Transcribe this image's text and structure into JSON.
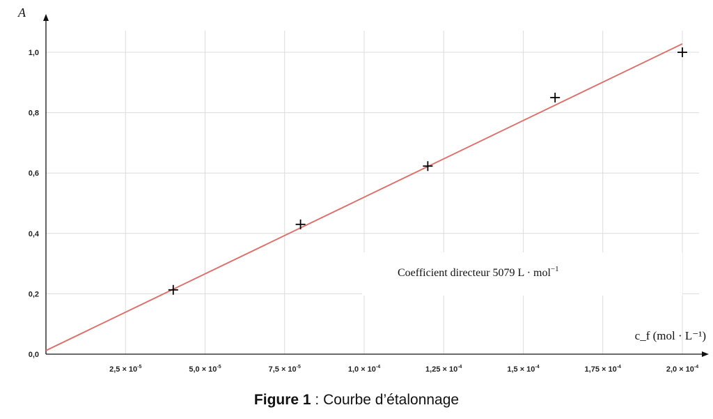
{
  "chart_data": {
    "type": "scatter",
    "title": "",
    "ylabel": "A",
    "xlabel": "c_f (mol · L⁻¹)",
    "xlim": [
      0,
      0.0002
    ],
    "ylim": [
      0,
      1.0
    ],
    "grid": true,
    "x_ticks": [
      2.5e-05,
      5e-05,
      7.5e-05,
      0.0001,
      0.000125,
      0.00015,
      0.000175,
      0.0002
    ],
    "x_tick_mantissa": [
      "2,5",
      "5,0",
      "7,5",
      "1,0",
      "1,25",
      "1,5",
      "1,75",
      "2,0"
    ],
    "x_tick_exponent": [
      "-5",
      "-5",
      "-5",
      "-4",
      "-4",
      "-4",
      "-4",
      "-4"
    ],
    "y_ticks": [
      0,
      0.2,
      0.4,
      0.6,
      0.8,
      1.0
    ],
    "y_tick_labels": [
      "0,0",
      "0,2",
      "0,4",
      "0,6",
      "0,8",
      "1,0"
    ],
    "points": {
      "x": [
        4e-05,
        8e-05,
        0.00012,
        0.00016,
        0.0002
      ],
      "y": [
        0.213,
        0.43,
        0.623,
        0.85,
        1.0
      ]
    },
    "fit_line": {
      "x": [
        0,
        0.0002
      ],
      "y": [
        0.012,
        1.028
      ],
      "color": "#d9736f"
    },
    "annotation": {
      "prefix": "Coefficient directeur 5079 L · mol",
      "sup": "−1"
    }
  },
  "caption": {
    "bold": "Figure 1",
    "rest": " : Courbe d’étalonnage"
  }
}
